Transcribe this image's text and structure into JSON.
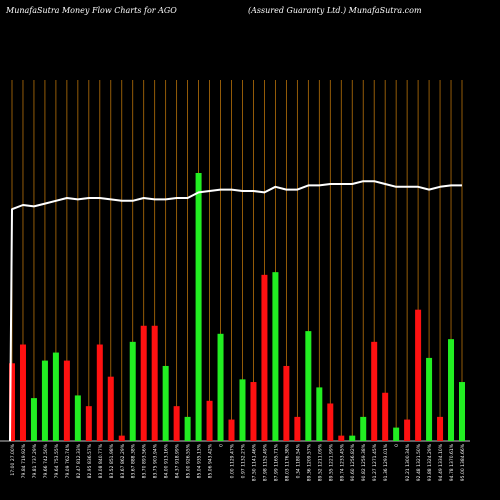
{
  "header": {
    "left": "MunafaSutra  Money Flow  Charts for AGO",
    "right": "(Assured Guaranty Ltd.) MunafaSutra.com"
  },
  "colors": {
    "background": "#000000",
    "grid": "#b8720a",
    "up": "#22ee22",
    "down": "#ff1111",
    "line": "#ffffff",
    "label": "#ffffff"
  },
  "chart_data": {
    "type": "bar",
    "ylim": [
      0,
      100
    ],
    "categories": [
      "17:00 27.00%",
      "79.84 719.92%",
      "79.81 737.29%",
      "79.66 742.50%",
      "79.64 753.55%",
      "79.09 762.74%",
      "82.47 812.33%",
      "82.95 836.57%",
      "83.08 840.77%",
      "83.52 851.98%",
      "83.67 862.29%",
      "83.67 888.38%",
      "83.70 893.56%",
      "83.75 903.94%",
      "84.00 913.16%",
      "84.37 918.99%",
      "85.00 926.55%",
      "85.04 935.13%",
      "85.06 943.42%",
      "0",
      "0.00 1129.47%",
      "0.97 1132.27%",
      "87.50 1141.46%",
      "87.98 1152.49%",
      "87.99 1165.71%",
      "88.03 1176.38%",
      "0.34 1180.54%",
      "89.36 1209.57%",
      "89.52 1211.09%",
      "89.55 1221.99%",
      "89.74 1233.45%",
      "90.60 1256.82%",
      "90.82 1259.38%",
      "91.27 1271.45%",
      "91.36 1293.01%",
      "0",
      "92.21 1300.34%",
      "92.48 1321.50%",
      "93.88 1324.29%",
      "94.49 1334.10%",
      "94.78 1370.61%",
      "95.00 1384.66%"
    ],
    "series": [
      {
        "values": [
          29,
          36,
          16,
          30,
          33,
          30,
          17,
          13,
          36,
          24,
          2,
          37,
          43,
          43,
          28,
          13,
          9,
          100,
          15,
          40,
          8,
          23,
          22,
          62,
          63,
          28,
          9,
          41,
          20,
          14,
          2,
          2,
          9,
          37,
          18,
          5,
          8,
          49,
          31,
          9,
          38,
          22
        ]
      }
    ],
    "bar_colors": [
      "down",
      "down",
      "up",
      "up",
      "up",
      "down",
      "up",
      "down",
      "down",
      "down",
      "down",
      "up",
      "down",
      "down",
      "up",
      "down",
      "up",
      "up",
      "down",
      "up",
      "down",
      "up",
      "down",
      "down",
      "up",
      "down",
      "down",
      "up",
      "up",
      "down",
      "down",
      "up",
      "up",
      "down",
      "down",
      "up",
      "down",
      "down",
      "up",
      "down",
      "up",
      "up"
    ],
    "line": {
      "values": [
        72,
        75,
        74,
        76,
        78,
        80,
        79,
        80,
        80,
        79,
        78,
        78,
        80,
        79,
        79,
        80,
        80,
        84,
        85,
        86,
        86,
        85,
        85,
        84,
        88,
        86,
        86,
        89,
        89,
        90,
        90,
        90,
        92,
        92,
        90,
        88,
        88,
        88,
        86,
        88,
        89,
        89
      ]
    }
  }
}
